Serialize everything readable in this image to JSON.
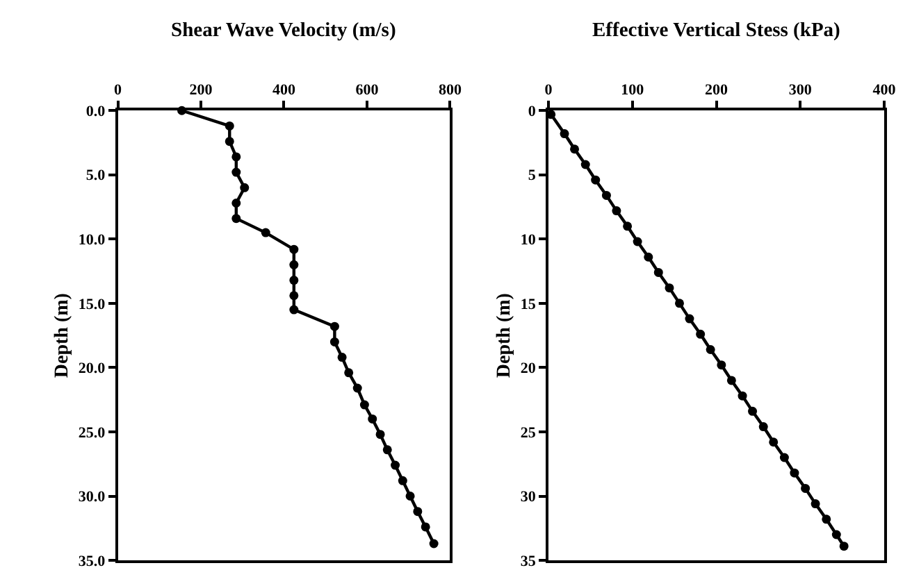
{
  "chart_data": [
    {
      "type": "line",
      "title": "Shear Wave Velocity (m/s)",
      "ylabel": "Depth (m)",
      "marker": "circle",
      "line_style": "solid",
      "series": [
        {
          "color": "#000000",
          "x": [
            154,
            269,
            269,
            285,
            285,
            305,
            285,
            285,
            356,
            424,
            424,
            424,
            424,
            424,
            522,
            522,
            540,
            556,
            577,
            594,
            613,
            632,
            649,
            668,
            686,
            704,
            722,
            741,
            761
          ],
          "values": [
            0.0,
            1.2,
            2.4,
            3.6,
            4.8,
            6.0,
            7.2,
            8.4,
            9.5,
            10.8,
            12.0,
            13.2,
            14.4,
            15.5,
            16.8,
            18.0,
            19.2,
            20.4,
            21.6,
            22.9,
            24.0,
            25.2,
            26.4,
            27.6,
            28.8,
            30.0,
            31.2,
            32.4,
            33.7
          ]
        }
      ],
      "xlim": [
        0,
        800
      ],
      "xticks": [
        0,
        200,
        400,
        600,
        800
      ],
      "ylim": [
        35,
        0
      ],
      "yticks": [
        {
          "value": 0,
          "label": "0.0"
        },
        {
          "value": 5,
          "label": "5.0"
        },
        {
          "value": 10,
          "label": "10.0"
        },
        {
          "value": 15,
          "label": "15.0"
        },
        {
          "value": 20,
          "label": "20.0"
        },
        {
          "value": 25,
          "label": "25.0"
        },
        {
          "value": 30,
          "label": "30.0"
        },
        {
          "value": 35,
          "label": "35.0"
        }
      ]
    },
    {
      "type": "line",
      "title": "Effective Vertical Stess (kPa)",
      "ylabel": "Depth (m)",
      "marker": "circle",
      "line_style": "solid",
      "series": [
        {
          "color": "#000000",
          "x": [
            3,
            19,
            31,
            44,
            56,
            69,
            81,
            94,
            106,
            119,
            131,
            144,
            156,
            168,
            181,
            193,
            206,
            218,
            231,
            243,
            256,
            268,
            281,
            293,
            306,
            318,
            331,
            343,
            352
          ],
          "values": [
            0.3,
            1.8,
            3.0,
            4.2,
            5.4,
            6.6,
            7.8,
            9.0,
            10.2,
            11.4,
            12.6,
            13.8,
            15.0,
            16.2,
            17.4,
            18.6,
            19.8,
            21.0,
            22.2,
            23.4,
            24.6,
            25.8,
            27.0,
            28.2,
            29.4,
            30.6,
            31.8,
            33.0,
            33.9
          ]
        }
      ],
      "xlim": [
        0,
        400
      ],
      "xticks": [
        0,
        100,
        200,
        300,
        400
      ],
      "ylim": [
        35,
        0
      ],
      "yticks": [
        0,
        5,
        10,
        15,
        20,
        25,
        30,
        35
      ]
    }
  ]
}
